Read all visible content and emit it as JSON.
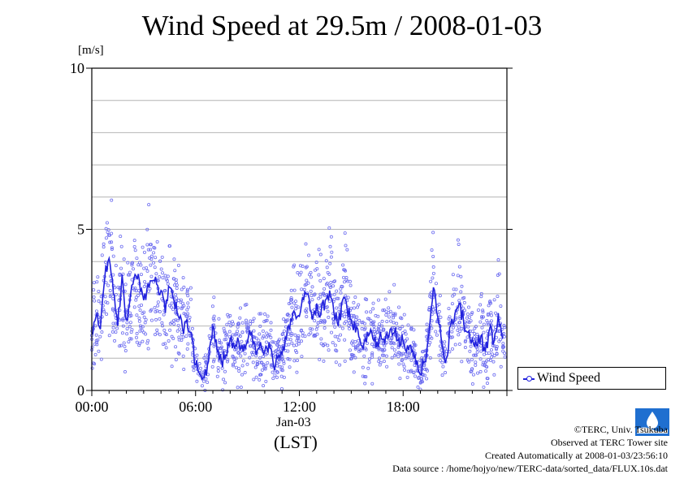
{
  "chart_data": {
    "type": "scatter",
    "title": "Wind Speed at 29.5m / 2008-01-03",
    "ylabel": "[m/s]",
    "xlabel_date": "Jan-03",
    "xlabel_tz": "(LST)",
    "ylim": [
      0,
      10
    ],
    "xlim_hours": [
      0,
      24
    ],
    "y_ticks": [
      "0",
      "5",
      "10"
    ],
    "x_ticks": [
      {
        "hour": 0,
        "label": "00:00"
      },
      {
        "hour": 6,
        "label": "06:00"
      },
      {
        "hour": 12,
        "label": "12:00"
      },
      {
        "hour": 18,
        "label": "18:00"
      }
    ],
    "grid": true,
    "legend_position": "bottom-right outside",
    "series": [
      {
        "name": "Wind Speed",
        "color": "#2222dd",
        "point_color": "#6f6ff0",
        "x_hours": [
          0.0,
          0.25,
          0.5,
          0.75,
          1.0,
          1.25,
          1.5,
          1.75,
          2.0,
          2.25,
          2.5,
          2.75,
          3.0,
          3.25,
          3.5,
          3.75,
          4.0,
          4.25,
          4.5,
          4.75,
          5.0,
          5.25,
          5.5,
          5.75,
          6.0,
          6.25,
          6.5,
          6.75,
          7.0,
          7.25,
          7.5,
          7.75,
          8.0,
          8.25,
          8.5,
          8.75,
          9.0,
          9.25,
          9.5,
          9.75,
          10.0,
          10.25,
          10.5,
          10.75,
          11.0,
          11.25,
          11.5,
          11.75,
          12.0,
          12.25,
          12.5,
          12.75,
          13.0,
          13.25,
          13.5,
          13.75,
          14.0,
          14.25,
          14.5,
          14.75,
          15.0,
          15.25,
          15.5,
          15.75,
          16.0,
          16.25,
          16.5,
          16.75,
          17.0,
          17.25,
          17.5,
          17.75,
          18.0,
          18.25,
          18.5,
          18.75,
          19.0,
          19.25,
          19.5,
          19.75,
          20.0,
          20.25,
          20.5,
          20.75,
          21.0,
          21.25,
          21.5,
          21.75,
          22.0,
          22.25,
          22.5,
          22.75,
          23.0,
          23.25,
          23.5,
          23.75
        ],
        "values": [
          1.8,
          2.3,
          1.9,
          3.5,
          4.1,
          3.0,
          2.0,
          3.6,
          2.2,
          3.0,
          3.6,
          3.4,
          2.8,
          3.3,
          3.4,
          3.3,
          3.1,
          2.4,
          3.2,
          2.8,
          2.3,
          1.9,
          2.2,
          1.8,
          0.8,
          0.5,
          0.4,
          0.9,
          2.0,
          1.2,
          0.9,
          1.1,
          1.6,
          1.3,
          1.5,
          1.2,
          1.5,
          1.8,
          1.1,
          1.5,
          1.2,
          1.5,
          0.8,
          1.0,
          1.1,
          1.6,
          2.2,
          2.4,
          2.3,
          2.8,
          3.0,
          2.2,
          2.7,
          2.4,
          2.8,
          3.1,
          2.4,
          2.0,
          2.8,
          2.6,
          2.2,
          1.8,
          1.6,
          1.5,
          1.7,
          1.6,
          1.5,
          1.6,
          1.7,
          1.9,
          1.8,
          1.6,
          1.5,
          1.4,
          1.2,
          0.8,
          0.5,
          0.9,
          1.8,
          3.2,
          2.3,
          1.4,
          1.0,
          2.0,
          2.4,
          2.7,
          2.1,
          1.8,
          1.6,
          1.4,
          1.7,
          1.2,
          1.9,
          1.5,
          2.4,
          1.6
        ]
      }
    ]
  },
  "legend": {
    "label": "Wind Speed"
  },
  "credits": {
    "line1": "©TERC, Univ. Tsukuba",
    "line2": "Observed at TERC Tower site",
    "line3": "Created Automatically at 2008-01-03/23:56:10",
    "line4": "Data source : /home/hojyo/new/TERC-data/sorted_data/FLUX.10s.dat"
  },
  "logo_icon": "terc-logo-icon"
}
